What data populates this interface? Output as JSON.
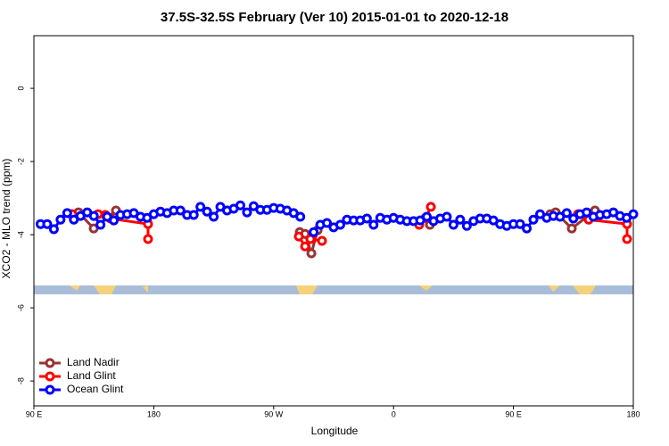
{
  "chart_data": {
    "type": "line",
    "title": "37.5S-32.5S February (Ver 10)   2015-01-01 to 2020-12-18",
    "x_label": "Longitude",
    "y_label": "XCO2 - MLO trend (ppm)",
    "xlim": [
      90,
      540
    ],
    "ylim": [
      -8.68,
      1.44
    ],
    "xticks": [
      {
        "value": 90,
        "label": "90 E"
      },
      180,
      {
        "value": 270,
        "label": "90 W"
      },
      {
        "value": 360,
        "label": "0"
      },
      {
        "value": 450,
        "label": "90 E"
      },
      {
        "value": 540,
        "label": "180"
      }
    ],
    "yticks": [
      0,
      -2,
      -4,
      -6,
      -8
    ],
    "legend": "bottom-left",
    "series": [
      {
        "name": "Land Nadir",
        "color": "#993333",
        "x": [
          118.1,
          123.5,
          134.9,
          151.6,
          null,
          289.6,
          293.6,
          298.3,
          303.0,
          null,
          387.3,
          null,
          477.7,
          481.7,
          493.8,
          511.2
        ],
        "values": [
          -3.44,
          -3.39,
          -3.83,
          -3.34,
          null,
          -3.93,
          -3.98,
          -4.51,
          -3.88,
          null,
          -3.73,
          null,
          -3.44,
          -3.39,
          -3.83,
          -3.34
        ]
      },
      {
        "name": "Land Glint",
        "color": "#ff0000",
        "x": [
          118.8,
          138.2,
          143.6,
          147.6,
          175.7,
          175.7,
          null,
          288.9,
          293.6,
          297.6,
          306.3,
          null,
          379.3,
          384.0,
          388.0,
          null,
          498.5,
          503.2,
          506.5,
          535.3,
          535.3
        ],
        "values": [
          -3.44,
          -3.44,
          -3.46,
          -3.56,
          -3.71,
          -4.12,
          null,
          -4.05,
          -4.32,
          -4.12,
          -4.17,
          null,
          -3.73,
          -3.54,
          -3.24,
          null,
          -3.44,
          -3.44,
          -3.59,
          -3.71,
          -4.12
        ]
      },
      {
        "name": "Ocean Glint",
        "color": "#0000ff",
        "x": [
          95,
          100,
          105,
          110,
          115,
          120,
          125,
          130,
          135,
          140,
          145,
          150,
          155,
          160,
          165,
          170,
          175,
          180,
          185,
          190,
          195,
          200,
          205,
          210,
          215,
          220,
          225,
          230,
          235,
          240,
          245,
          250,
          255,
          260,
          265,
          270,
          275,
          280,
          285,
          290,
          295,
          300,
          305,
          310,
          315,
          320,
          325,
          330,
          335,
          340,
          345,
          350,
          355,
          360,
          365,
          370,
          375,
          380,
          385,
          390,
          395,
          400,
          405,
          410,
          415,
          420,
          425,
          430,
          435,
          440,
          445,
          450,
          455,
          460,
          465,
          470,
          475,
          480,
          485,
          490,
          495,
          500,
          505,
          510,
          515,
          520,
          525,
          530,
          535,
          540
        ],
        "values": [
          -3.71,
          -3.71,
          -3.85,
          -3.59,
          -3.41,
          -3.59,
          -3.49,
          -3.39,
          -3.49,
          -3.73,
          -3.51,
          -3.61,
          -3.46,
          -3.44,
          -3.41,
          -3.51,
          -3.54,
          -3.44,
          -3.37,
          -3.41,
          -3.34,
          -3.34,
          -3.46,
          -3.46,
          -3.24,
          -3.37,
          -3.51,
          -3.24,
          -3.34,
          -3.29,
          -3.2,
          -3.39,
          -3.22,
          -3.32,
          -3.32,
          -3.27,
          -3.29,
          -3.34,
          -3.41,
          -3.51,
          null,
          -3.93,
          -3.73,
          -3.68,
          -3.8,
          -3.73,
          -3.59,
          -3.61,
          -3.61,
          -3.56,
          -3.73,
          -3.54,
          -3.59,
          -3.54,
          -3.59,
          -3.63,
          -3.63,
          -3.61,
          -3.51,
          -3.63,
          -3.56,
          -3.51,
          -3.73,
          -3.59,
          -3.76,
          -3.63,
          -3.56,
          -3.56,
          -3.61,
          -3.71,
          -3.76,
          -3.71,
          -3.71,
          -3.83,
          -3.59,
          -3.44,
          -3.54,
          -3.49,
          -3.51,
          -3.41,
          -3.56,
          -3.44,
          -3.39,
          -3.51,
          -3.46,
          -3.44,
          -3.39,
          -3.49,
          -3.54,
          -3.44
        ]
      }
    ]
  }
}
